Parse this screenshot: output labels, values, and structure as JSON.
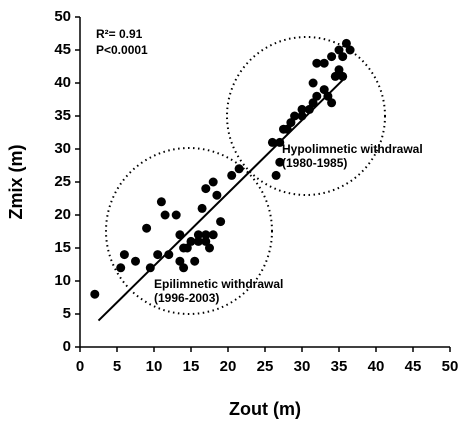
{
  "chart_data": {
    "type": "scatter",
    "x_label": "Zout (m)",
    "y_label": "Zmix (m)",
    "xlim": [
      0,
      50
    ],
    "ylim": [
      0,
      50
    ],
    "xticks": [
      0,
      5,
      10,
      15,
      20,
      25,
      30,
      35,
      40,
      45,
      50
    ],
    "yticks": [
      0,
      5,
      10,
      15,
      20,
      25,
      30,
      35,
      40,
      45,
      50
    ],
    "grid": false,
    "color": "#000000",
    "x": [
      2,
      5.5,
      6,
      7.5,
      9,
      9.5,
      10.5,
      11,
      11.5,
      12,
      13,
      13.5,
      13.5,
      14,
      14,
      14.5,
      15,
      15.5,
      16,
      16,
      16.5,
      17,
      17,
      17,
      17.5,
      18,
      18,
      18.5,
      19,
      20.5,
      21.5,
      26,
      26.5,
      27,
      27,
      27.5,
      28,
      28.5,
      29,
      30,
      30,
      31,
      31.5,
      32,
      31.5,
      32,
      33,
      33,
      33.5,
      34,
      34,
      34.5,
      35,
      35,
      35.5,
      36,
      36.5,
      35.5
    ],
    "y": [
      8,
      12,
      14,
      13,
      18,
      12,
      14,
      22,
      20,
      14,
      20,
      13,
      17,
      15,
      12,
      15,
      16,
      13,
      16,
      17,
      21,
      16,
      17,
      24,
      15,
      25,
      17,
      23,
      19,
      26,
      27,
      31,
      26,
      28,
      31,
      33,
      33,
      34,
      35,
      36,
      35,
      36,
      37,
      38,
      40,
      43,
      39,
      43,
      38,
      37,
      44,
      41,
      45,
      42,
      44,
      46,
      45,
      41
    ],
    "fit_line": {
      "x": [
        2.5,
        36
      ],
      "y": [
        4,
        41
      ]
    },
    "annotations": {
      "r2": "R²= 0.91",
      "p": "P<0.0001",
      "hypo": "Hypolimnetic withdrawal",
      "hypo_years": "(1980-1985)",
      "epi": "Epilimnetic withdrawal",
      "epi_years": "(1996-2003)"
    }
  }
}
